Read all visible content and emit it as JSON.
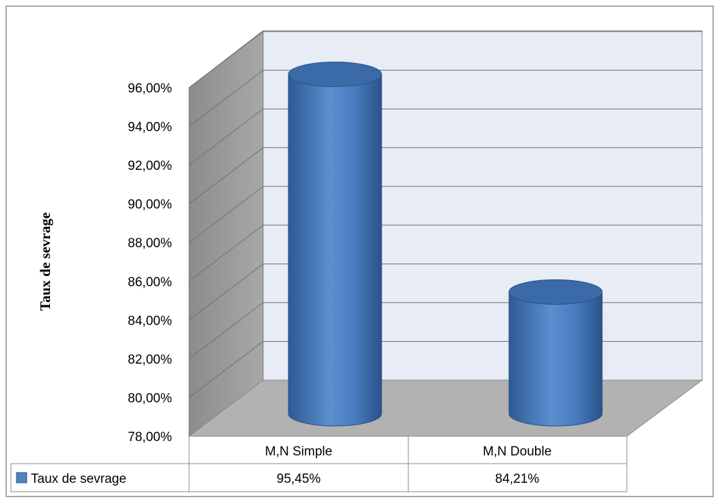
{
  "chart_data": {
    "type": "bar",
    "style": "3d-cylinder",
    "title": "",
    "xlabel": "",
    "ylabel": "Taux de sevrage",
    "categories": [
      "M,N Simple",
      "M,N Double"
    ],
    "series": [
      {
        "name": "Taux de sevrage",
        "values": [
          95.45,
          84.21
        ],
        "labels": [
          "95,45%",
          "84,21%"
        ]
      }
    ],
    "ylim": [
      78,
      96
    ],
    "y_ticks": [
      "78,00%",
      "80,00%",
      "82,00%",
      "84,00%",
      "86,00%",
      "88,00%",
      "90,00%",
      "92,00%",
      "94,00%",
      "96,00%"
    ],
    "grid": true,
    "legend": "data-table",
    "colors": {
      "bar": "#4F81BD",
      "back_wall": "#E8ECF5",
      "side_wall": "#A0A0A0",
      "floor": "#B2B2B2"
    }
  }
}
